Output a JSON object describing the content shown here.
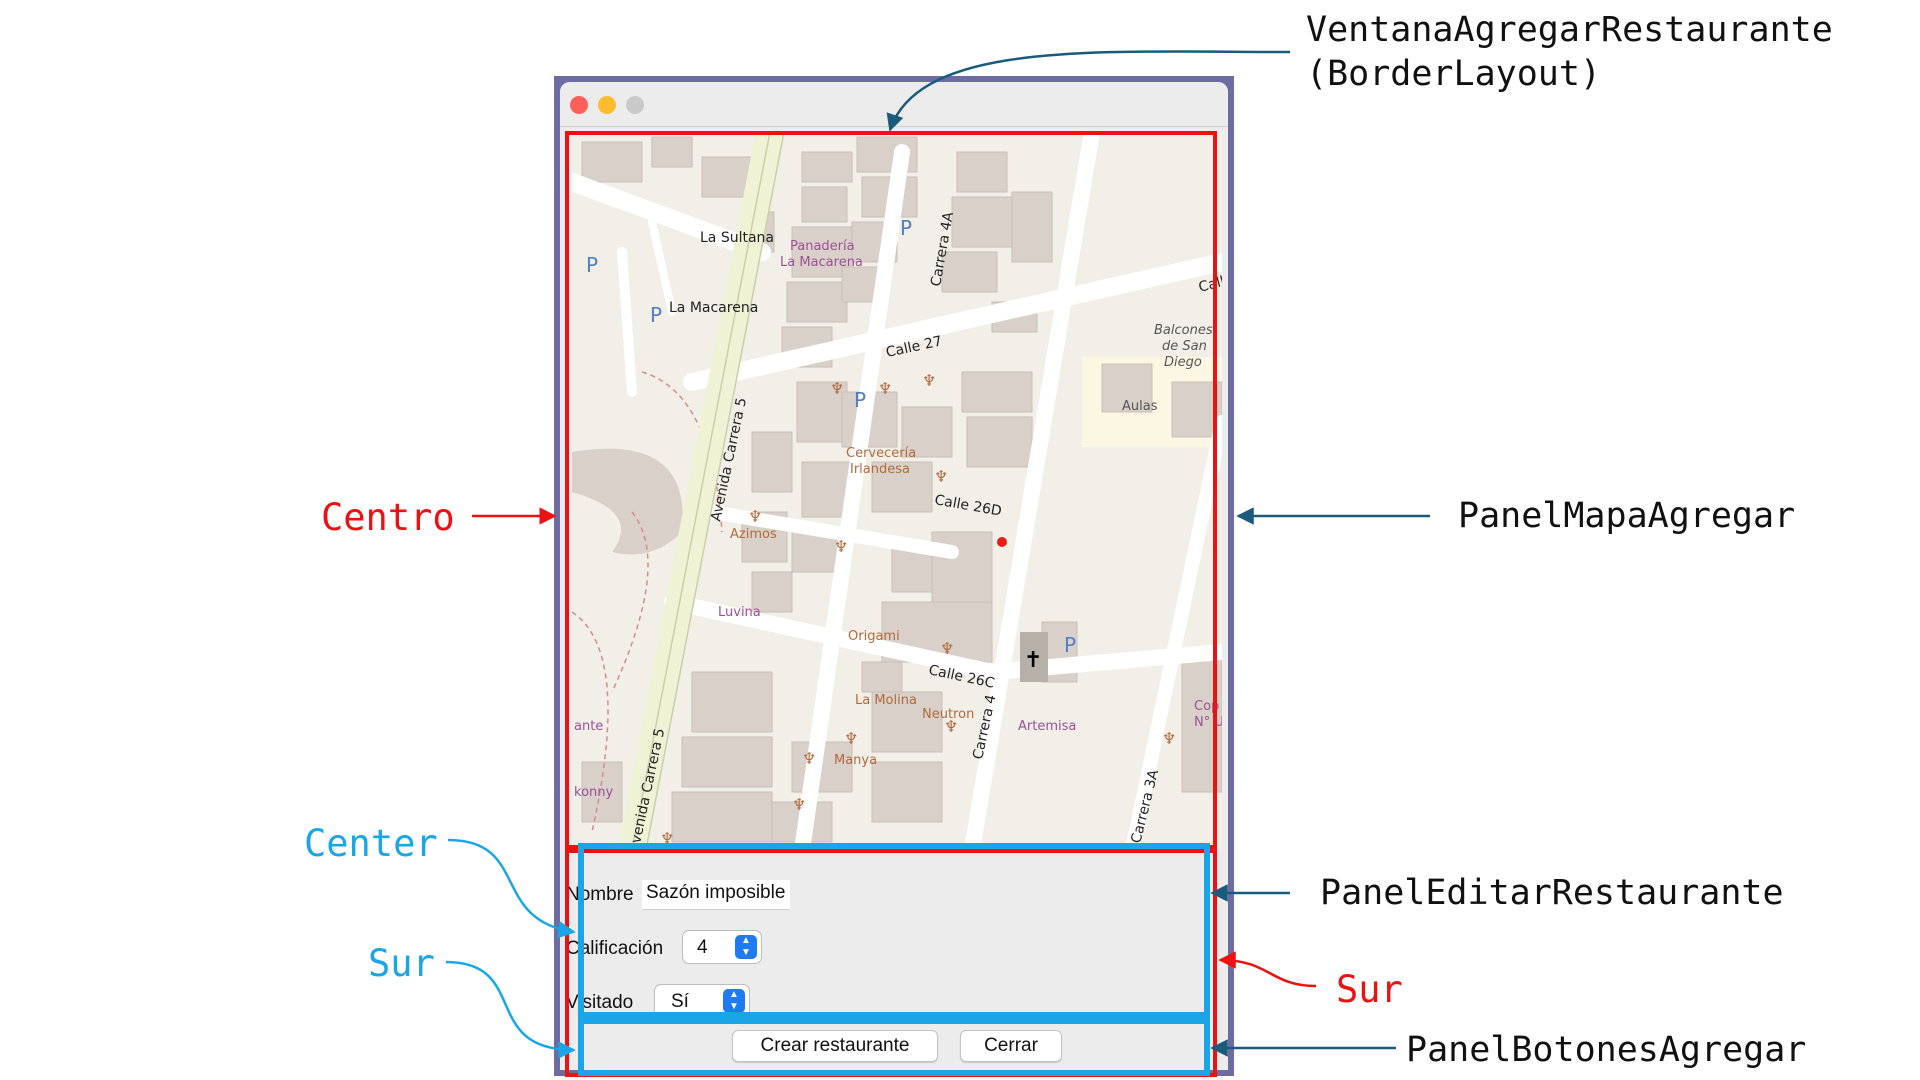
{
  "annotations": {
    "window": {
      "line1": "VentanaAgregarRestaurante",
      "line2": "(BorderLayout)"
    },
    "centro": "Centro",
    "panel_mapa": "PanelMapaAgregar",
    "center": "Center",
    "panel_editar": "PanelEditarRestaurante",
    "sur_blue": "Sur",
    "sur_red": "Sur",
    "panel_botones": "PanelBotonesAgregar"
  },
  "colors": {
    "red": "#ee1111",
    "blue": "#1aa6e6",
    "navy": "#1a5a7a",
    "window_frame": "#6d6ba3"
  },
  "form": {
    "nombre_label": "Nombre",
    "nombre_value": "Sazón imposible",
    "calificacion_label": "Calificación",
    "calificacion_value": "4",
    "visitado_label": "Visitado",
    "visitado_value": "Sí"
  },
  "buttons": {
    "crear": "Crear restaurante",
    "cerrar": "Cerrar"
  },
  "map": {
    "labels": {
      "la_sultana": "La Sultana",
      "panaderia_1": "Panadería",
      "panaderia_2": "La Macarena",
      "la_macarena": "La Macarena",
      "calle_27": "Calle 27",
      "carrera_4a": "Carrera 4A",
      "calle_top": "Calle",
      "balcones_1": "Balcones",
      "balcones_2": "de San",
      "balcones_3": "Diego",
      "aulas": "Aulas",
      "avenida_carrera_5": "Avenida Carrera 5",
      "avenida_carrera_5_b": "venida Carrera 5",
      "cerveceria_1": "Cervecería",
      "cerveceria_2": "Irlandesa",
      "calle_26d": "Calle 26D",
      "azimos": "Azimos",
      "luvina": "Luvina",
      "origami": "Origami",
      "calle_26c": "Calle 26C",
      "la_molina": "La Molina",
      "neutron": "Neutron",
      "carrera_4": "Carrera 4",
      "artemisa": "Artemisa",
      "manya": "Manya",
      "konny": "konny",
      "ante": "ante",
      "cop_1": "Cop",
      "cop_2": "N° U",
      "carrera_3a": "Carrera 3A",
      "parking": "P"
    }
  },
  "window_controls": {
    "close": "#ff5f57",
    "minimize": "#febc2e",
    "zoom": "#c9c9c9"
  }
}
